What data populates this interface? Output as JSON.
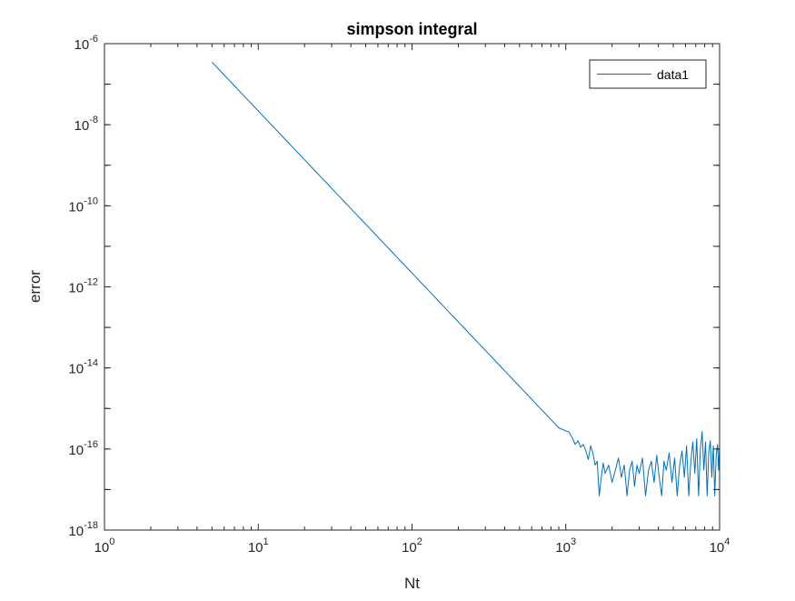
{
  "chart_data": {
    "type": "line",
    "title": "simpson integral",
    "xlabel": "Nt",
    "ylabel": "error",
    "xscale": "log",
    "yscale": "log",
    "xlim": [
      1,
      10000
    ],
    "ylim": [
      1e-18,
      1e-06
    ],
    "x_ticks": [
      {
        "base": "10",
        "exp": "0"
      },
      {
        "base": "10",
        "exp": "1"
      },
      {
        "base": "10",
        "exp": "2"
      },
      {
        "base": "10",
        "exp": "3"
      },
      {
        "base": "10",
        "exp": "4"
      }
    ],
    "y_ticks": [
      {
        "base": "10",
        "exp": "-18"
      },
      {
        "base": "10",
        "exp": "-16"
      },
      {
        "base": "10",
        "exp": "-14"
      },
      {
        "base": "10",
        "exp": "-12"
      },
      {
        "base": "10",
        "exp": "-10"
      },
      {
        "base": "10",
        "exp": "-8"
      },
      {
        "base": "10",
        "exp": "-6"
      }
    ],
    "grid": false,
    "legend": {
      "position": "top-right",
      "entries": [
        "data1"
      ]
    },
    "series": [
      {
        "name": "data1",
        "color": "#0072BD",
        "trend": {
          "x_start": 5,
          "x_end": 900,
          "y_start": 3.5e-07,
          "slope_decades_per_decade": -4
        },
        "points": [
          [
            5,
            3.5e-07
          ],
          [
            10,
            2.2e-08
          ],
          [
            20,
            1.4e-09
          ],
          [
            50,
            3.5e-11
          ],
          [
            100,
            2.2e-12
          ],
          [
            200,
            1.4e-13
          ],
          [
            500,
            3.5e-15
          ],
          [
            800,
            5.4e-16
          ],
          [
            900,
            3.4e-16
          ],
          [
            1000,
            2.8e-16
          ],
          [
            1050,
            2.6e-16
          ],
          [
            1100,
            1.9e-16
          ],
          [
            1150,
            1.3e-16
          ],
          [
            1200,
            1.6e-16
          ],
          [
            1250,
            1.1e-16
          ],
          [
            1300,
            1.3e-16
          ],
          [
            1350,
            9e-17
          ],
          [
            1400,
            5.5e-17
          ],
          [
            1450,
            1.2e-16
          ],
          [
            1500,
            8e-17
          ],
          [
            1550,
            4e-17
          ],
          [
            1600,
            5e-17
          ],
          [
            1650,
            7e-18
          ],
          [
            1700,
            2e-17
          ],
          [
            1750,
            4.5e-17
          ],
          [
            1800,
            2.5e-17
          ],
          [
            1900,
            4e-17
          ],
          [
            2000,
            1.5e-17
          ],
          [
            2100,
            3e-17
          ],
          [
            2200,
            6e-17
          ],
          [
            2300,
            2e-17
          ],
          [
            2400,
            4e-17
          ],
          [
            2500,
            7e-18
          ],
          [
            2600,
            3e-17
          ],
          [
            2700,
            5e-17
          ],
          [
            2800,
            1.2e-17
          ],
          [
            2900,
            4e-17
          ],
          [
            3000,
            2.5e-17
          ],
          [
            3150,
            6e-17
          ],
          [
            3300,
            7e-18
          ],
          [
            3450,
            3e-17
          ],
          [
            3600,
            5e-17
          ],
          [
            3750,
            1.5e-17
          ],
          [
            3900,
            7e-17
          ],
          [
            4050,
            2e-17
          ],
          [
            4200,
            7e-18
          ],
          [
            4350,
            5e-17
          ],
          [
            4500,
            3e-17
          ],
          [
            4700,
            8e-17
          ],
          [
            4900,
            1.5e-17
          ],
          [
            5100,
            6e-17
          ],
          [
            5300,
            7e-18
          ],
          [
            5500,
            4e-17
          ],
          [
            5700,
            9e-17
          ],
          [
            5900,
            2e-17
          ],
          [
            6100,
            1.2e-16
          ],
          [
            6300,
            7e-18
          ],
          [
            6500,
            5e-17
          ],
          [
            6700,
            1.5e-16
          ],
          [
            6900,
            2.5e-17
          ],
          [
            7100,
            1.8e-16
          ],
          [
            7300,
            7e-18
          ],
          [
            7500,
            1e-16
          ],
          [
            7700,
            2.7e-16
          ],
          [
            7900,
            3e-17
          ],
          [
            8100,
            1.5e-16
          ],
          [
            8300,
            7e-18
          ],
          [
            8500,
            8e-17
          ],
          [
            8700,
            1.6e-16
          ],
          [
            8900,
            2e-17
          ],
          [
            9100,
            1.2e-16
          ],
          [
            9300,
            7e-18
          ],
          [
            9500,
            7e-17
          ],
          [
            9700,
            1.3e-16
          ],
          [
            9850,
            3e-17
          ],
          [
            10000,
            1.2e-16
          ]
        ]
      }
    ]
  }
}
